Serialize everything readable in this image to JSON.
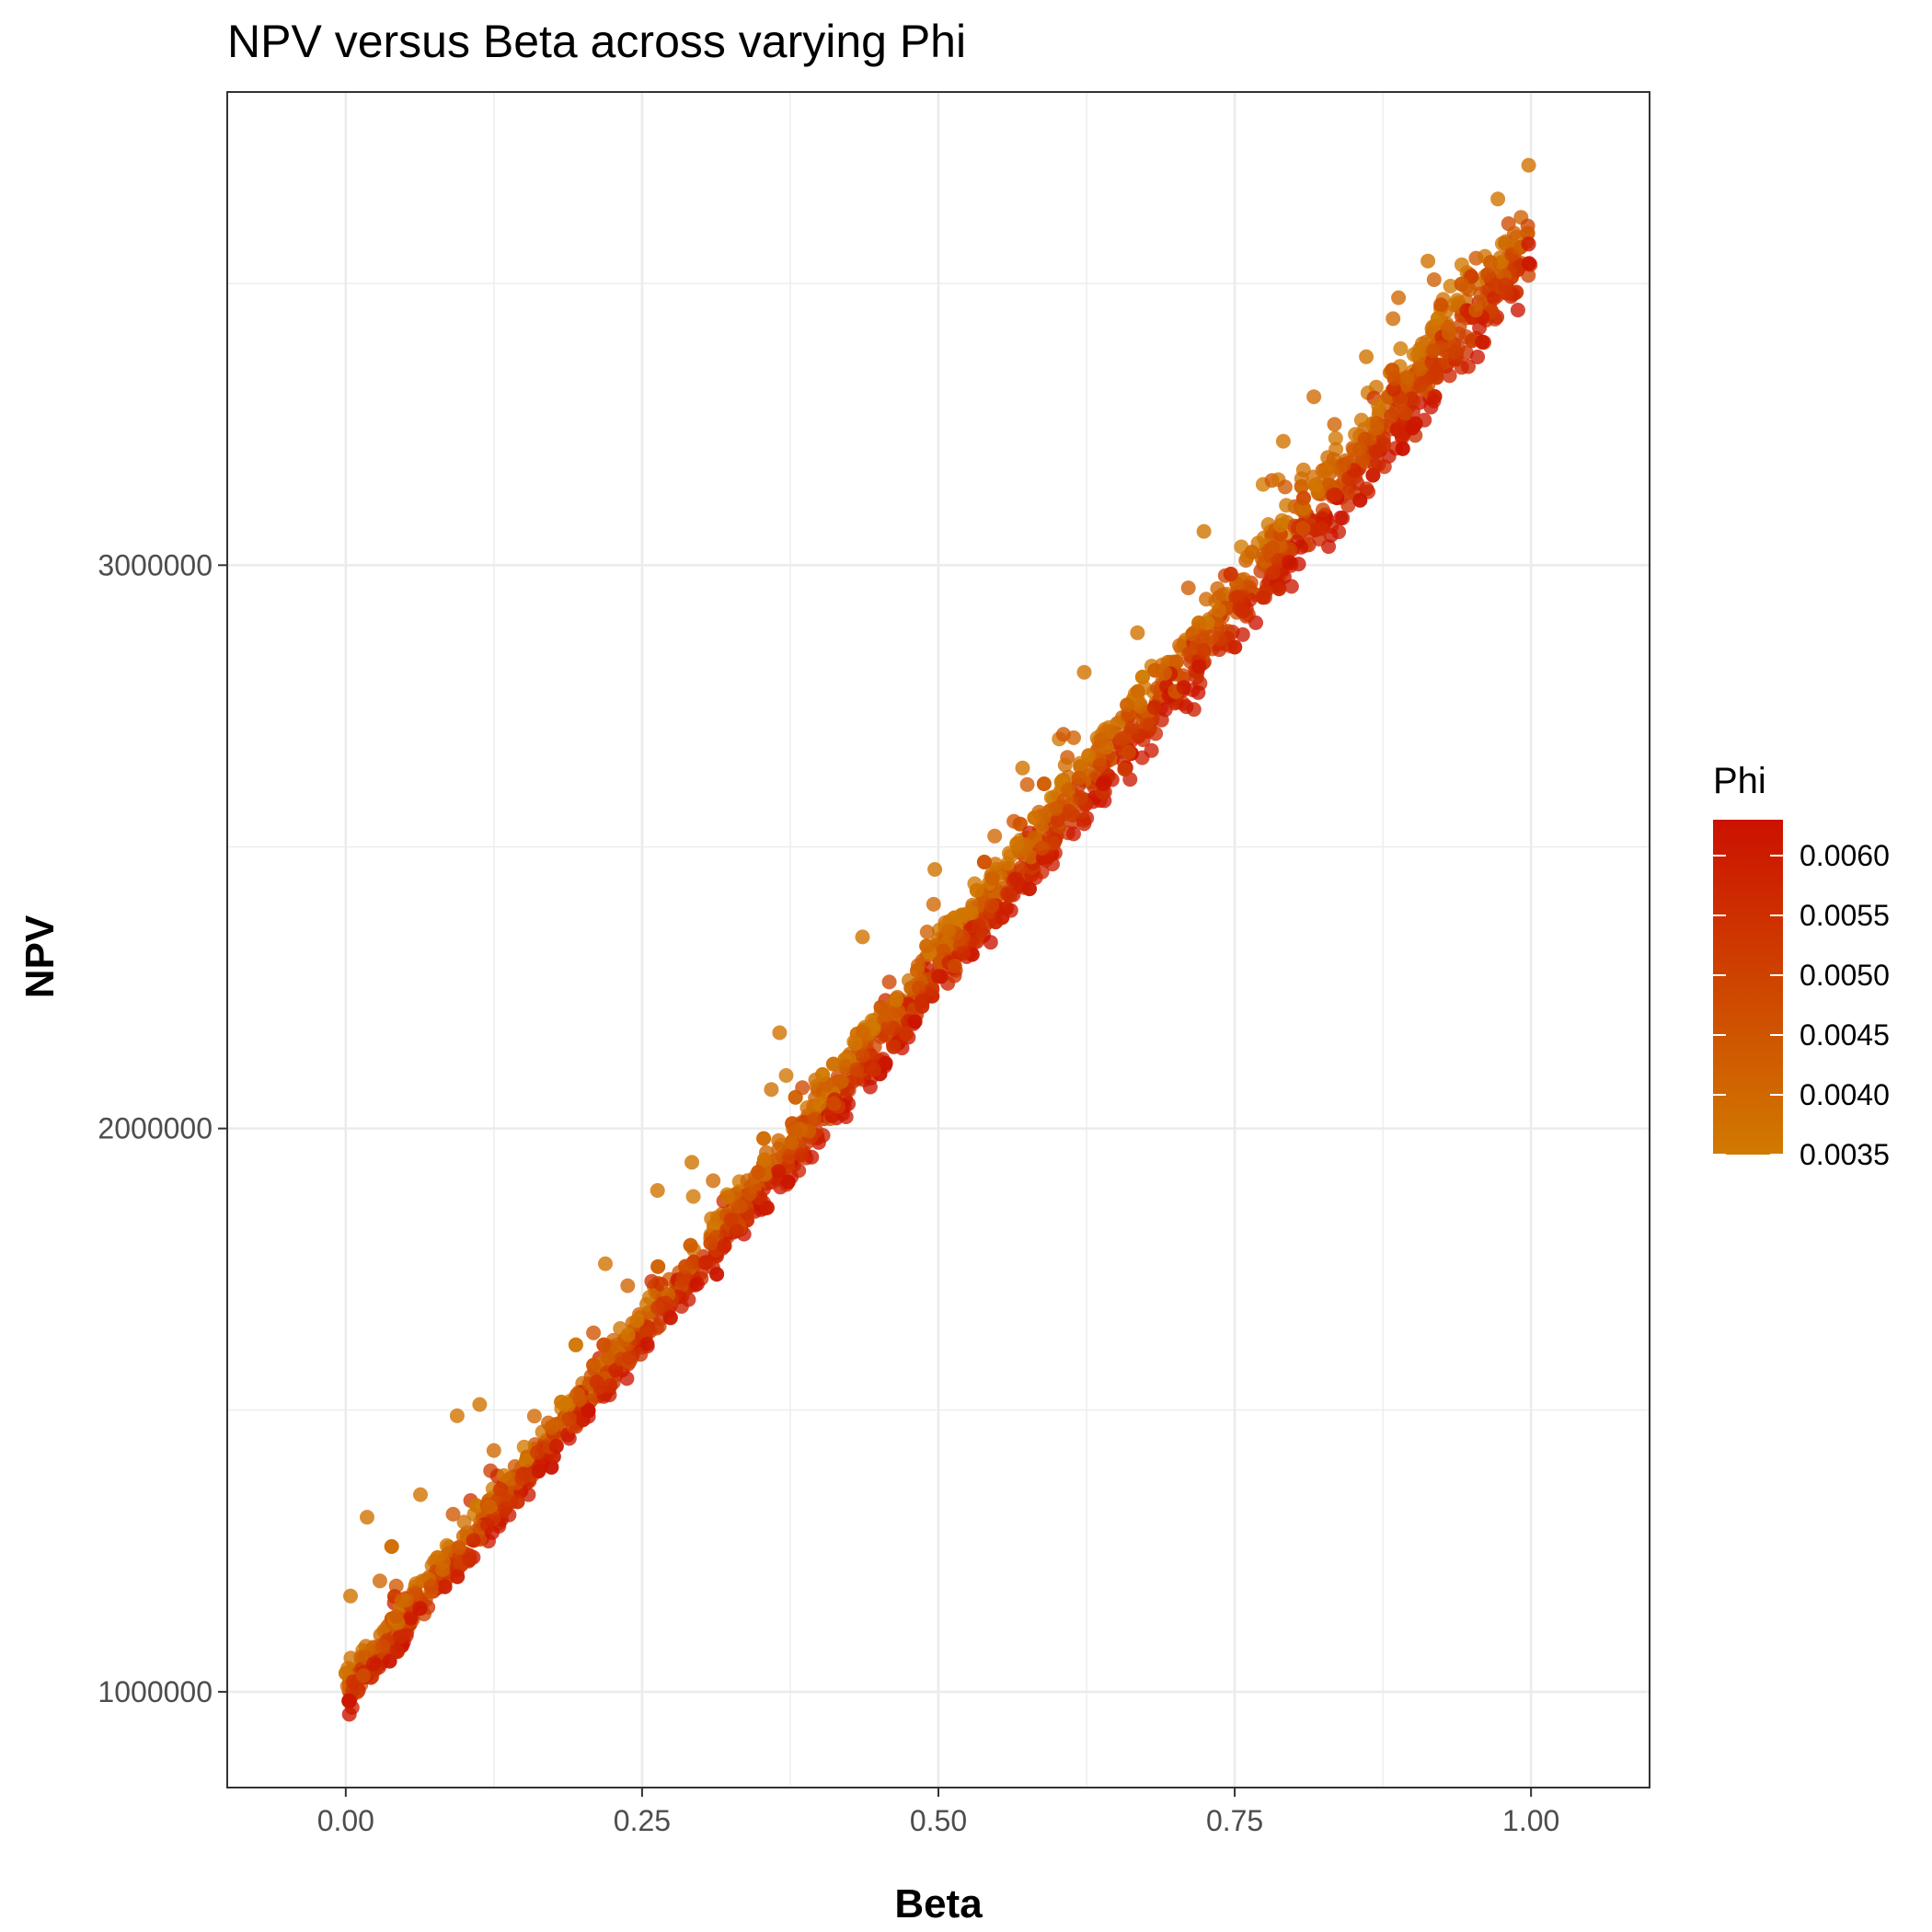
{
  "chart_data": {
    "type": "scatter",
    "title": "NPV versus Beta across varying Phi",
    "xlabel": "Beta",
    "ylabel": "NPV",
    "xlim": [
      -0.1,
      1.1
    ],
    "ylim": [
      830000,
      3840000
    ],
    "x_ticks": [
      0.0,
      0.25,
      0.5,
      0.75,
      1.0
    ],
    "x_tick_labels": [
      "0.00",
      "0.25",
      "0.50",
      "0.75",
      "1.00"
    ],
    "y_ticks": [
      1000000,
      2000000,
      3000000
    ],
    "y_tick_labels": [
      "1000000",
      "2000000",
      "3000000"
    ],
    "grid": true,
    "legend": {
      "title": "Phi",
      "placement": "right",
      "type": "colorbar",
      "range": [
        0.0035,
        0.0063
      ],
      "ticks": [
        0.0035,
        0.004,
        0.0045,
        0.005,
        0.0055,
        0.006
      ],
      "tick_labels": [
        "0.0035",
        "0.0040",
        "0.0045",
        "0.0050",
        "0.0055",
        "0.0060"
      ],
      "color_low": "#d17a00",
      "color_high": "#cc1100"
    },
    "trend": {
      "description": "NPV rises roughly linearly with Beta; higher Phi points sit slightly lower, lower Phi points scatter above",
      "npv_at_beta_0": 1000000,
      "npv_at_beta_1": 3570000
    },
    "series": [
      {
        "x": [
          0.0,
          0.05,
          0.1,
          0.15,
          0.2,
          0.25,
          0.3,
          0.35,
          0.4,
          0.45,
          0.5,
          0.55,
          0.6,
          0.65,
          0.7,
          0.75,
          0.8,
          0.85,
          0.9,
          0.95,
          1.0
        ],
        "y": [
          1000000,
          1130000,
          1260000,
          1390000,
          1520000,
          1650000,
          1780000,
          1910000,
          2040000,
          2170000,
          2290000,
          2420000,
          2550000,
          2680000,
          2810000,
          2940000,
          3060000,
          3190000,
          3320000,
          3450000,
          3570000
        ]
      }
    ],
    "points": [
      {
        "x": 0.004,
        "y": 1170000,
        "phi": 0.0037
      },
      {
        "x": 0.018,
        "y": 1310000,
        "phi": 0.0037
      },
      {
        "x": 0.063,
        "y": 1350000,
        "phi": 0.0037
      },
      {
        "x": 0.094,
        "y": 1490000,
        "phi": 0.0037
      },
      {
        "x": 0.113,
        "y": 1510000,
        "phi": 0.0037
      },
      {
        "x": 0.219,
        "y": 1760000,
        "phi": 0.0037
      },
      {
        "x": 0.263,
        "y": 1890000,
        "phi": 0.0037
      },
      {
        "x": 0.292,
        "y": 1940000,
        "phi": 0.0037
      },
      {
        "x": 0.366,
        "y": 2170000,
        "phi": 0.0037
      },
      {
        "x": 0.436,
        "y": 2340000,
        "phi": 0.0037
      },
      {
        "x": 0.497,
        "y": 2460000,
        "phi": 0.0037
      },
      {
        "x": 0.571,
        "y": 2640000,
        "phi": 0.0037
      },
      {
        "x": 0.623,
        "y": 2810000,
        "phi": 0.0037
      },
      {
        "x": 0.668,
        "y": 2880000,
        "phi": 0.0037
      },
      {
        "x": 0.724,
        "y": 3060000,
        "phi": 0.0037
      },
      {
        "x": 0.791,
        "y": 3220000,
        "phi": 0.0037
      },
      {
        "x": 0.861,
        "y": 3370000,
        "phi": 0.0037
      },
      {
        "x": 0.913,
        "y": 3540000,
        "phi": 0.0037
      },
      {
        "x": 0.972,
        "y": 3650000,
        "phi": 0.0037
      },
      {
        "x": 0.998,
        "y": 3710000,
        "phi": 0.0037
      },
      {
        "x": 0.003,
        "y": 960000,
        "phi": 0.0061
      },
      {
        "x": 0.5,
        "y": 2270000,
        "phi": 0.0061
      },
      {
        "x": 0.72,
        "y": 2820000,
        "phi": 0.0061
      },
      {
        "x": 0.998,
        "y": 3570000,
        "phi": 0.0061
      }
    ]
  }
}
